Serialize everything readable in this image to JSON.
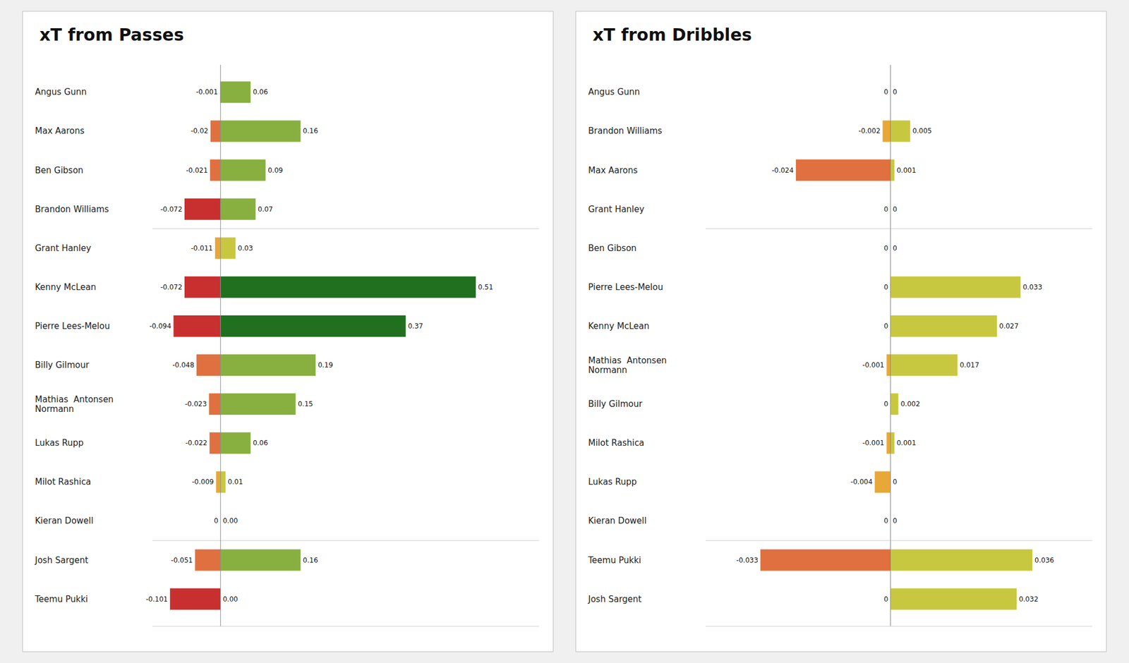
{
  "chart_data": [
    {
      "type": "bar",
      "orientation": "horizontal",
      "title": "xT from Passes",
      "categories": [
        "Angus Gunn",
        "Max Aarons",
        "Ben Gibson",
        "Brandon Williams",
        "Grant Hanley",
        "Kenny McLean",
        "Pierre Lees-Melou",
        "Billy Gilmour",
        "Mathias  Antonsen\nNormann",
        "Lukas Rupp",
        "Milot Rashica",
        "Kieran Dowell",
        "Josh Sargent",
        "Teemu Pukki"
      ],
      "series": [
        {
          "values": [
            -0.001,
            -0.02,
            -0.021,
            -0.072,
            -0.011,
            -0.072,
            -0.094,
            -0.048,
            -0.023,
            -0.022,
            -0.009,
            0,
            -0.051,
            -0.101
          ],
          "colors": [
            "#E8A838",
            "#E07040",
            "#E07040",
            "#C83030",
            "#E8A838",
            "#C83030",
            "#C83030",
            "#E07040",
            "#E07040",
            "#E07040",
            "#E8A838",
            "#E8A838",
            "#E07040",
            "#C83030"
          ]
        },
        {
          "values": [
            0.06,
            0.16,
            0.09,
            0.07,
            0.03,
            0.51,
            0.37,
            0.19,
            0.15,
            0.06,
            0.01,
            0,
            0.16,
            0
          ],
          "value_labels": [
            "0.06",
            "0.16",
            "0.09",
            "0.07",
            "0.03",
            "0.51",
            "0.37",
            "0.19",
            "0.15",
            "0.06",
            "0.01",
            "0.00",
            "0.16",
            "0.00"
          ],
          "colors": [
            "#88B040",
            "#88B040",
            "#88B040",
            "#88B040",
            "#C8C840",
            "#207020",
            "#207020",
            "#88B040",
            "#88B040",
            "#88B040",
            "#C8C840",
            "#C8C840",
            "#88B040",
            "#C8C840"
          ]
        }
      ],
      "xlim": [
        -0.13615,
        0.6365
      ],
      "grid": false,
      "data_labels": true,
      "tick_labels": "y"
    },
    {
      "type": "bar",
      "orientation": "horizontal",
      "title": "xT from Dribbles",
      "categories": [
        "Angus Gunn",
        "Brandon Williams",
        "Max Aarons",
        "Grant Hanley",
        "Ben Gibson",
        "Pierre Lees-Melou",
        "Kenny McLean",
        "Mathias  Antonsen\nNormann",
        "Billy Gilmour",
        "Milot Rashica",
        "Lukas Rupp",
        "Kieran Dowell",
        "Teemu Pukki",
        "Josh Sargent"
      ],
      "series": [
        {
          "values": [
            0,
            -0.002,
            -0.024,
            0,
            0,
            0,
            0,
            -0.001,
            0,
            -0.001,
            -0.004,
            0,
            -0.033,
            0
          ],
          "colors": [
            "#E8A838",
            "#E8A838",
            "#E07040",
            "#E8A838",
            "#E8A838",
            "#E8A838",
            "#E8A838",
            "#E8A838",
            "#E8A838",
            "#E8A838",
            "#E8A838",
            "#E8A838",
            "#E07040",
            "#E8A838"
          ]
        },
        {
          "values": [
            0,
            0.005,
            0.001,
            0,
            0,
            0.033,
            0.027,
            0.017,
            0.002,
            0.001,
            0,
            0,
            0.036,
            0.032
          ],
          "colors": [
            "#C8C840",
            "#C8C840",
            "#C8C840",
            "#C8C840",
            "#C8C840",
            "#C8C840",
            "#C8C840",
            "#C8C840",
            "#C8C840",
            "#C8C840",
            "#C8C840",
            "#C8C840",
            "#C8C840",
            "#C8C840"
          ]
        }
      ],
      "xlim": [
        -0.0469,
        0.0512
      ],
      "grid": false,
      "data_labels": true,
      "tick_labels": "y"
    }
  ]
}
